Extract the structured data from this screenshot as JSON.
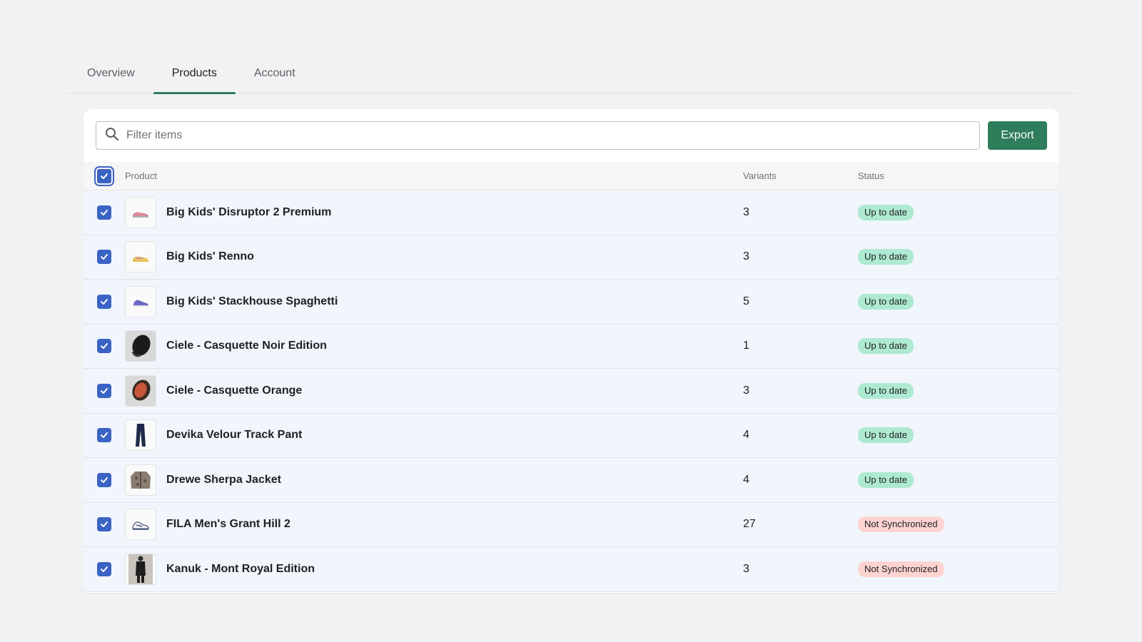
{
  "tabs": [
    {
      "label": "Overview",
      "active": false
    },
    {
      "label": "Products",
      "active": true
    },
    {
      "label": "Account",
      "active": false
    }
  ],
  "toolbar": {
    "search_placeholder": "Filter items",
    "export_label": "Export"
  },
  "table": {
    "headers": {
      "product": "Product",
      "variants": "Variants",
      "status": "Status"
    },
    "rows": [
      {
        "name": "Big Kids' Disruptor 2 Premium",
        "variants": "3",
        "status": "Up to date",
        "status_kind": "ok",
        "thumb": "sneaker-pink"
      },
      {
        "name": "Big Kids' Renno",
        "variants": "3",
        "status": "Up to date",
        "status_kind": "ok",
        "thumb": "sneaker-yellow"
      },
      {
        "name": "Big Kids' Stackhouse Spaghetti",
        "variants": "5",
        "status": "Up to date",
        "status_kind": "ok",
        "thumb": "sneaker-blue"
      },
      {
        "name": "Ciele - Casquette Noir Edition",
        "variants": "1",
        "status": "Up to date",
        "status_kind": "ok",
        "thumb": "cap-black"
      },
      {
        "name": "Ciele - Casquette Orange",
        "variants": "3",
        "status": "Up to date",
        "status_kind": "ok",
        "thumb": "cap-orange"
      },
      {
        "name": "Devika Velour Track Pant",
        "variants": "4",
        "status": "Up to date",
        "status_kind": "ok",
        "thumb": "pants"
      },
      {
        "name": "Drewe Sherpa Jacket",
        "variants": "4",
        "status": "Up to date",
        "status_kind": "ok",
        "thumb": "jacket"
      },
      {
        "name": "FILA Men's Grant Hill 2",
        "variants": "27",
        "status": "Not Synchronized",
        "status_kind": "bad",
        "thumb": "sneaker-white"
      },
      {
        "name": "Kanuk - Mont Royal Edition",
        "variants": "3",
        "status": "Not Synchronized",
        "status_kind": "bad",
        "thumb": "coat-person"
      }
    ]
  },
  "colors": {
    "accent": "#2e7d5b",
    "checkbox": "#3a63c4",
    "row_selected": "#f1f5fc",
    "badge_ok": "#aee9d1",
    "badge_bad": "#fed3d1"
  }
}
